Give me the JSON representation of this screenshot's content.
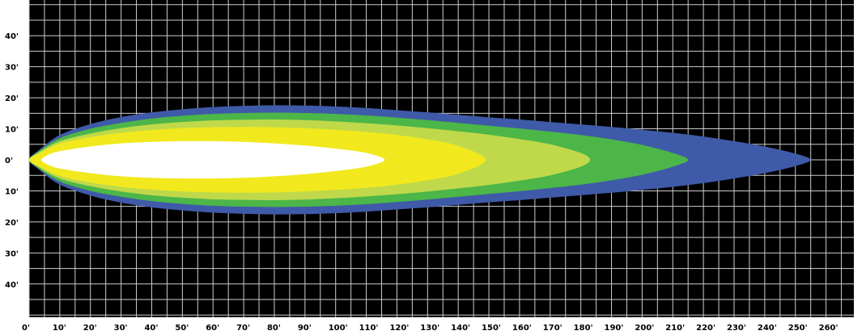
{
  "chart_data": {
    "type": "area",
    "title": "",
    "xlabel": "",
    "ylabel": "",
    "xlim": [
      0,
      265
    ],
    "ylim": [
      -50,
      50
    ],
    "grid": true,
    "background_color": "#000000",
    "grid_color": "#cccccc",
    "x_ticks": [
      "0'",
      "10'",
      "20'",
      "30'",
      "40'",
      "50'",
      "60'",
      "70'",
      "80'",
      "90'",
      "100'",
      "110'",
      "120'",
      "130'",
      "140'",
      "150'",
      "160'",
      "170'",
      "180'",
      "190'",
      "200'",
      "210'",
      "220'",
      "230'",
      "240'",
      "250'",
      "260'"
    ],
    "y_ticks": [
      {
        "value": 40,
        "label": "40'"
      },
      {
        "value": 30,
        "label": "30'"
      },
      {
        "value": 20,
        "label": "20'"
      },
      {
        "value": 10,
        "label": "10'"
      },
      {
        "value": 0,
        "label": "0'"
      },
      {
        "value": -10,
        "label": "10'"
      },
      {
        "value": -20,
        "label": "20'"
      },
      {
        "value": -30,
        "label": "30'"
      },
      {
        "value": -40,
        "label": "40'"
      }
    ],
    "series": [
      {
        "color": "#3f5aa8",
        "x": [
          0,
          3,
          10,
          20,
          30,
          40,
          50,
          60,
          70,
          80,
          90,
          100,
          110,
          120,
          130,
          140,
          150,
          160,
          170,
          180,
          190,
          200,
          210,
          220,
          230,
          240,
          250,
          255
        ],
        "half_width": [
          0,
          3,
          8,
          11.5,
          13.8,
          15.3,
          16.3,
          17,
          17.4,
          17.6,
          17.5,
          17.2,
          16.7,
          16,
          15.3,
          14.5,
          13.7,
          13,
          12.2,
          11.4,
          10.6,
          9.7,
          8.7,
          7.5,
          6,
          4.3,
          2,
          0
        ]
      },
      {
        "color": "#4cb648",
        "x": [
          0,
          3,
          10,
          20,
          30,
          40,
          50,
          60,
          70,
          80,
          90,
          100,
          110,
          120,
          130,
          140,
          150,
          160,
          170,
          180,
          190,
          200,
          210,
          215
        ],
        "half_width": [
          0,
          2.7,
          7,
          10,
          11.9,
          13.3,
          14.2,
          14.8,
          15.1,
          15.2,
          15.1,
          14.8,
          14.3,
          13.6,
          12.8,
          11.9,
          11,
          10.1,
          9.1,
          8,
          6.6,
          4.8,
          2.2,
          0
        ]
      },
      {
        "color": "#bfd94a",
        "x": [
          0,
          3,
          10,
          20,
          30,
          40,
          50,
          60,
          70,
          80,
          90,
          100,
          110,
          120,
          130,
          140,
          150,
          160,
          170,
          180,
          183
        ],
        "half_width": [
          0,
          2.3,
          6,
          8.5,
          10.2,
          11.4,
          12.2,
          12.7,
          12.9,
          13,
          12.8,
          12.4,
          11.8,
          11.1,
          10.2,
          9.2,
          8.1,
          6.7,
          5,
          2.2,
          0
        ]
      },
      {
        "color": "#f1e91e",
        "x": [
          0,
          3,
          10,
          20,
          30,
          40,
          50,
          60,
          70,
          80,
          90,
          100,
          110,
          120,
          130,
          140,
          149
        ],
        "half_width": [
          0,
          2,
          5.2,
          7.3,
          8.7,
          9.6,
          10.2,
          10.5,
          10.6,
          10.5,
          10.2,
          9.7,
          9,
          8,
          6.6,
          4.5,
          0
        ]
      },
      {
        "color": "#ffffff",
        "x": [
          4,
          6,
          10,
          20,
          30,
          40,
          50,
          60,
          70,
          80,
          90,
          100,
          110,
          116
        ],
        "half_width": [
          0,
          1.5,
          2.8,
          4.3,
          5.3,
          5.8,
          6,
          6,
          5.8,
          5.3,
          4.6,
          3.6,
          2.2,
          0
        ]
      }
    ]
  }
}
